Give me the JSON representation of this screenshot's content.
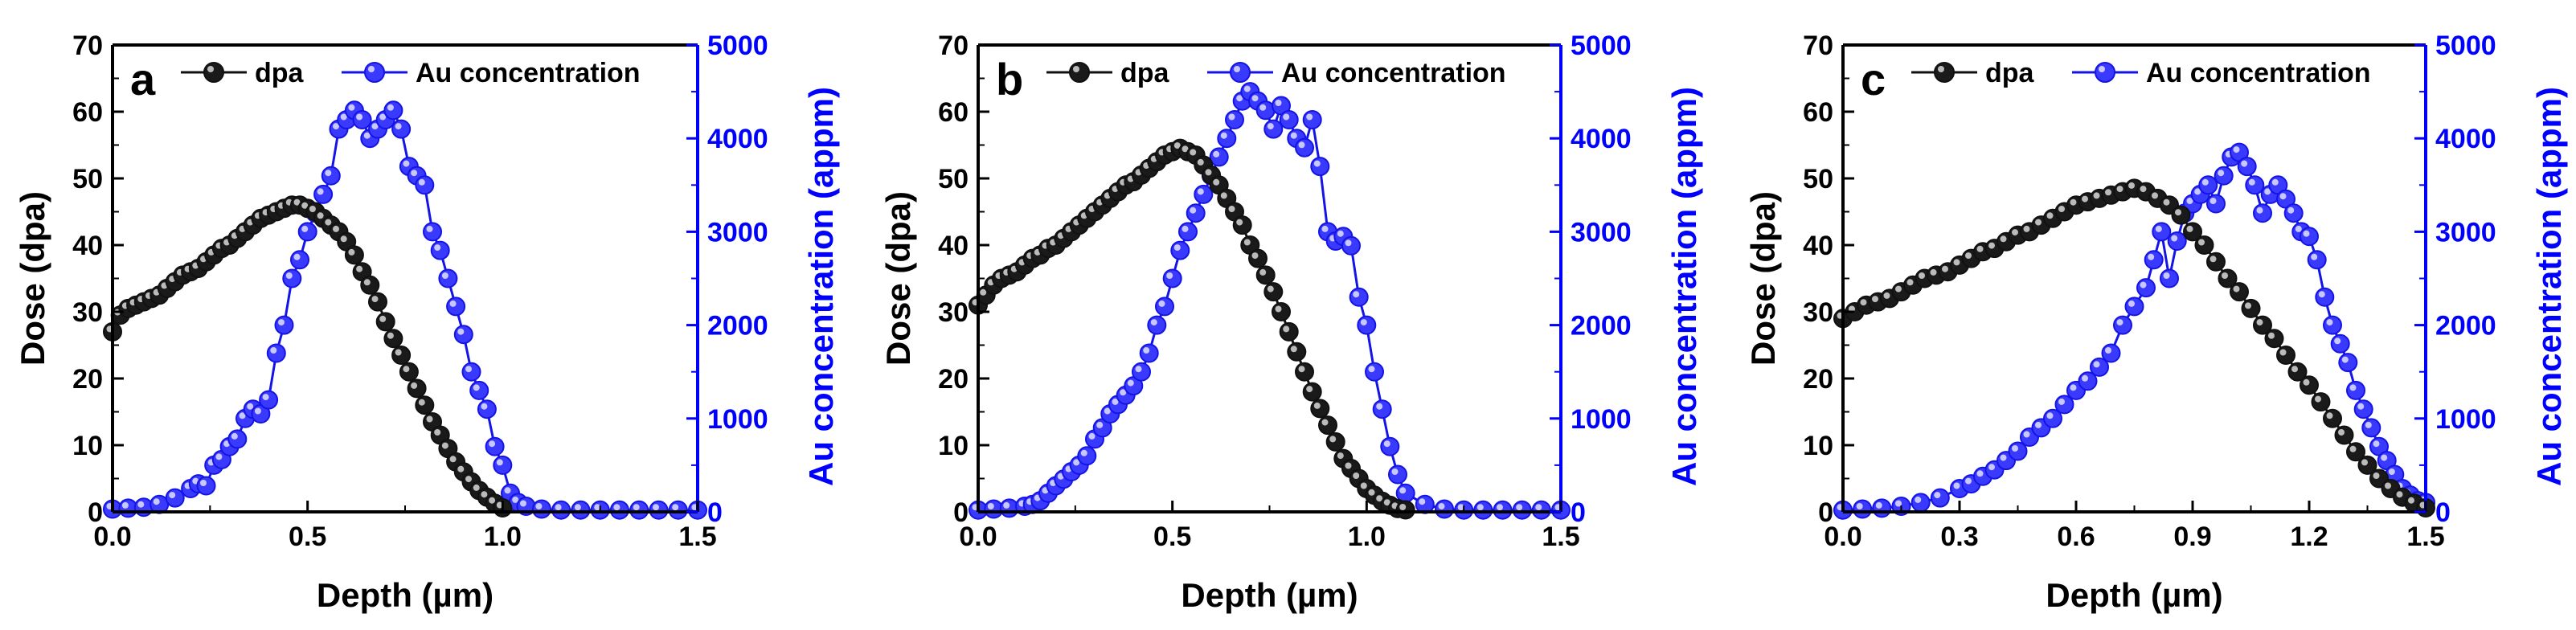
{
  "colors": {
    "dpa": "#111111",
    "au": "#1414e6",
    "axis": "#000000",
    "right_axis": "#0000ff"
  },
  "legend": {
    "dpa": "dpa",
    "au": "Au concentration"
  },
  "chart_data": [
    {
      "type": "line",
      "panel": "a",
      "xlabel": "Depth (µm)",
      "ylabel": "Dose (dpa)",
      "y2label": "Au concentration (appm)",
      "xlim": [
        0,
        1.5
      ],
      "ylim": [
        0,
        70
      ],
      "y2lim": [
        0,
        5000
      ],
      "xticks": [
        "0.0",
        "0.5",
        "1.0",
        "1.5"
      ],
      "yticks": [
        "0",
        "10",
        "20",
        "30",
        "40",
        "50",
        "60",
        "70"
      ],
      "y2ticks": [
        "0",
        "1000",
        "2000",
        "3000",
        "4000",
        "5000"
      ],
      "series": [
        {
          "name": "dpa",
          "x": [
            0.0,
            0.02,
            0.04,
            0.06,
            0.08,
            0.1,
            0.12,
            0.14,
            0.16,
            0.18,
            0.2,
            0.22,
            0.24,
            0.26,
            0.28,
            0.3,
            0.32,
            0.34,
            0.36,
            0.38,
            0.4,
            0.42,
            0.44,
            0.46,
            0.48,
            0.5,
            0.52,
            0.54,
            0.56,
            0.58,
            0.6,
            0.62,
            0.64,
            0.66,
            0.68,
            0.7,
            0.72,
            0.74,
            0.76,
            0.78,
            0.8,
            0.82,
            0.84,
            0.86,
            0.88,
            0.9,
            0.92,
            0.94,
            0.96,
            0.98,
            1.0
          ],
          "values": [
            27,
            29.5,
            30.5,
            31,
            31.5,
            32,
            32.5,
            33.5,
            34.5,
            35.5,
            36,
            36.5,
            37.5,
            38.5,
            39.5,
            40,
            41,
            42,
            43,
            44,
            44.5,
            45,
            45.5,
            46,
            46,
            45.5,
            45,
            44,
            43,
            42,
            40.5,
            38.5,
            36,
            34,
            31.5,
            28.5,
            26,
            23.5,
            21,
            18.5,
            16,
            13.5,
            11.5,
            9.5,
            7.5,
            6,
            4.5,
            3.2,
            2.2,
            1.3,
            0.6
          ]
        },
        {
          "name": "Au concentration",
          "x": [
            0.0,
            0.04,
            0.08,
            0.12,
            0.16,
            0.2,
            0.22,
            0.24,
            0.26,
            0.28,
            0.3,
            0.32,
            0.34,
            0.36,
            0.38,
            0.4,
            0.42,
            0.44,
            0.46,
            0.48,
            0.5,
            0.52,
            0.54,
            0.56,
            0.58,
            0.6,
            0.62,
            0.64,
            0.66,
            0.68,
            0.7,
            0.72,
            0.74,
            0.76,
            0.78,
            0.8,
            0.82,
            0.84,
            0.86,
            0.88,
            0.9,
            0.92,
            0.94,
            0.96,
            0.98,
            1.0,
            1.02,
            1.04,
            1.06,
            1.1,
            1.15,
            1.2,
            1.25,
            1.3,
            1.35,
            1.4,
            1.45,
            1.5
          ],
          "values": [
            30,
            40,
            50,
            80,
            150,
            250,
            300,
            280,
            500,
            560,
            700,
            780,
            1000,
            1100,
            1050,
            1200,
            1700,
            2000,
            2500,
            2700,
            3000,
            3200,
            3400,
            3600,
            4100,
            4200,
            4300,
            4200,
            4000,
            4100,
            4200,
            4300,
            4100,
            3700,
            3600,
            3500,
            3000,
            2800,
            2500,
            2200,
            1900,
            1500,
            1300,
            1100,
            700,
            500,
            200,
            100,
            60,
            30,
            20,
            20,
            20,
            20,
            20,
            20,
            20,
            20
          ]
        }
      ]
    },
    {
      "type": "line",
      "panel": "b",
      "xlabel": "Depth (µm)",
      "ylabel": "Dose (dpa)",
      "y2label": "Au concentration (appm)",
      "xlim": [
        0,
        1.5
      ],
      "ylim": [
        0,
        70
      ],
      "y2lim": [
        0,
        5000
      ],
      "xticks": [
        "0.0",
        "0.5",
        "1.0",
        "1.5"
      ],
      "yticks": [
        "0",
        "10",
        "20",
        "30",
        "40",
        "50",
        "60",
        "70"
      ],
      "y2ticks": [
        "0",
        "1000",
        "2000",
        "3000",
        "4000",
        "5000"
      ],
      "series": [
        {
          "name": "dpa",
          "x": [
            0.0,
            0.02,
            0.04,
            0.06,
            0.08,
            0.1,
            0.12,
            0.14,
            0.16,
            0.18,
            0.2,
            0.22,
            0.24,
            0.26,
            0.28,
            0.3,
            0.32,
            0.34,
            0.36,
            0.38,
            0.4,
            0.42,
            0.44,
            0.46,
            0.48,
            0.5,
            0.52,
            0.54,
            0.56,
            0.58,
            0.6,
            0.62,
            0.64,
            0.66,
            0.68,
            0.7,
            0.72,
            0.74,
            0.76,
            0.78,
            0.8,
            0.82,
            0.84,
            0.86,
            0.88,
            0.9,
            0.92,
            0.94,
            0.96,
            0.98,
            1.0,
            1.02,
            1.04,
            1.06,
            1.08,
            1.1
          ],
          "values": [
            31,
            32.5,
            34,
            35,
            35.5,
            36,
            37,
            38,
            38.5,
            39.5,
            40,
            41,
            42,
            43,
            44,
            45,
            46,
            47,
            48,
            49,
            49.5,
            50.5,
            51.5,
            52.5,
            53.5,
            54,
            54.5,
            54,
            53.5,
            52,
            50.5,
            49,
            47,
            45,
            43,
            40,
            38,
            35.5,
            33,
            30,
            27,
            24,
            21,
            18,
            15.5,
            13,
            10.5,
            8,
            6.5,
            5,
            3.5,
            2.5,
            1.6,
            1,
            0.5,
            0.3
          ]
        },
        {
          "name": "Au concentration",
          "x": [
            0.0,
            0.04,
            0.08,
            0.12,
            0.14,
            0.16,
            0.18,
            0.2,
            0.22,
            0.24,
            0.26,
            0.28,
            0.3,
            0.32,
            0.34,
            0.36,
            0.38,
            0.4,
            0.42,
            0.44,
            0.46,
            0.48,
            0.5,
            0.52,
            0.54,
            0.56,
            0.58,
            0.6,
            0.62,
            0.64,
            0.66,
            0.68,
            0.7,
            0.72,
            0.74,
            0.76,
            0.78,
            0.8,
            0.82,
            0.84,
            0.86,
            0.88,
            0.9,
            0.92,
            0.94,
            0.96,
            0.98,
            1.0,
            1.02,
            1.04,
            1.06,
            1.08,
            1.1,
            1.15,
            1.2,
            1.25,
            1.3,
            1.35,
            1.4,
            1.45,
            1.5
          ],
          "values": [
            20,
            30,
            40,
            60,
            80,
            120,
            200,
            280,
            350,
            430,
            500,
            600,
            780,
            900,
            1050,
            1150,
            1250,
            1350,
            1500,
            1700,
            2000,
            2200,
            2500,
            2800,
            3000,
            3200,
            3400,
            3600,
            3800,
            4000,
            4200,
            4400,
            4500,
            4400,
            4300,
            4100,
            4350,
            4200,
            4000,
            3900,
            4200,
            3700,
            3000,
            2900,
            2950,
            2850,
            2300,
            2000,
            1500,
            1100,
            700,
            400,
            200,
            80,
            30,
            20,
            20,
            20,
            20,
            20,
            20
          ]
        }
      ]
    },
    {
      "type": "line",
      "panel": "c",
      "xlabel": "Depth (µm)",
      "ylabel": "Dose (dpa)",
      "y2label": "Au concentration (appm)",
      "xlim": [
        0,
        1.5
      ],
      "ylim": [
        0,
        70
      ],
      "y2lim": [
        0,
        5000
      ],
      "xticks": [
        "0.0",
        "0.3",
        "0.6",
        "0.9",
        "1.2",
        "1.5"
      ],
      "yticks": [
        "0",
        "10",
        "20",
        "30",
        "40",
        "50",
        "60",
        "70"
      ],
      "y2ticks": [
        "0",
        "1000",
        "2000",
        "3000",
        "4000",
        "5000"
      ],
      "series": [
        {
          "name": "dpa",
          "x": [
            0.0,
            0.03,
            0.06,
            0.09,
            0.12,
            0.15,
            0.18,
            0.21,
            0.24,
            0.27,
            0.3,
            0.33,
            0.36,
            0.39,
            0.42,
            0.45,
            0.48,
            0.51,
            0.54,
            0.57,
            0.6,
            0.63,
            0.66,
            0.69,
            0.72,
            0.75,
            0.78,
            0.81,
            0.84,
            0.87,
            0.9,
            0.93,
            0.96,
            0.99,
            1.02,
            1.05,
            1.08,
            1.11,
            1.14,
            1.17,
            1.2,
            1.23,
            1.26,
            1.29,
            1.32,
            1.35,
            1.38,
            1.41,
            1.44,
            1.47,
            1.5
          ],
          "values": [
            29,
            30,
            31,
            31.5,
            32,
            33,
            34,
            35,
            35.5,
            36,
            37,
            38,
            39,
            39.5,
            40.5,
            41.5,
            42,
            43,
            44,
            45,
            46,
            46.5,
            47,
            47.5,
            48,
            48.5,
            48,
            47,
            46,
            44.5,
            42,
            40,
            37.5,
            35,
            33,
            30.5,
            28,
            26,
            23.5,
            21,
            19,
            16.5,
            14,
            11.5,
            9,
            7,
            5,
            3.5,
            2.2,
            1.3,
            0.6
          ]
        },
        {
          "name": "Au concentration",
          "x": [
            0.0,
            0.05,
            0.1,
            0.15,
            0.2,
            0.25,
            0.3,
            0.33,
            0.36,
            0.39,
            0.42,
            0.45,
            0.48,
            0.51,
            0.54,
            0.57,
            0.6,
            0.63,
            0.66,
            0.69,
            0.72,
            0.75,
            0.78,
            0.8,
            0.82,
            0.84,
            0.86,
            0.88,
            0.9,
            0.92,
            0.94,
            0.96,
            0.98,
            1.0,
            1.02,
            1.04,
            1.06,
            1.08,
            1.1,
            1.12,
            1.14,
            1.16,
            1.18,
            1.2,
            1.22,
            1.24,
            1.26,
            1.28,
            1.3,
            1.32,
            1.34,
            1.36,
            1.38,
            1.4,
            1.42,
            1.44,
            1.46,
            1.48,
            1.5
          ],
          "values": [
            20,
            30,
            40,
            60,
            100,
            150,
            250,
            300,
            380,
            450,
            550,
            650,
            800,
            900,
            1000,
            1150,
            1300,
            1400,
            1550,
            1700,
            2000,
            2200,
            2400,
            2700,
            3000,
            2500,
            2900,
            3200,
            3300,
            3400,
            3500,
            3300,
            3600,
            3800,
            3850,
            3700,
            3500,
            3200,
            3400,
            3500,
            3350,
            3200,
            3000,
            2950,
            2700,
            2300,
            2000,
            1800,
            1600,
            1300,
            1100,
            900,
            700,
            550,
            400,
            250,
            180,
            120,
            100
          ]
        }
      ]
    }
  ]
}
